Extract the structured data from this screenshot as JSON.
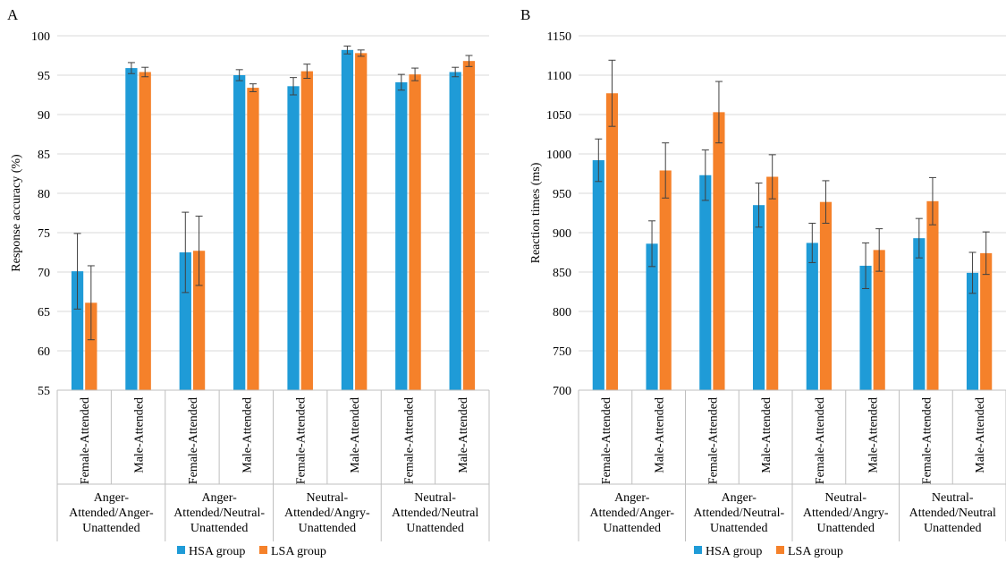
{
  "colors": {
    "hsa": "#1f9bd7",
    "lsa": "#f5812a",
    "grid": "#d9d9d9",
    "axis": "#bfbfbf",
    "error": "#404040"
  },
  "legend_placement": "bottom-center",
  "chart_data": [
    {
      "panel": "A",
      "type": "bar",
      "ylabel": "Response accuracy (%)",
      "ylim": [
        55,
        100
      ],
      "ytick_step": 5,
      "grid": true,
      "groups": [
        "Anger-Attended/Anger-Unattended",
        "Anger-Attended/Neutral-Unattended",
        "Neutral-Attended/Angry-Unattended",
        "Neutral-Attended/Neutral Unattended"
      ],
      "group_lines": [
        [
          "Anger-",
          "Attended/Anger-",
          "Unattended"
        ],
        [
          "Anger-",
          "Attended/Neutral-",
          "Unattended"
        ],
        [
          "Neutral-",
          "Attended/Angry-",
          "Unattended"
        ],
        [
          "Neutral-",
          "Attended/Neutral",
          "Unattended"
        ]
      ],
      "categories": [
        "Female-Attended",
        "Male-Attended",
        "Female-Attended",
        "Male-Attended",
        "Female-Attended",
        "Male-Attended",
        "Female-Attended",
        "Male-Attended"
      ],
      "series": [
        {
          "name": "HSA group",
          "values": [
            70.1,
            95.9,
            72.5,
            95.0,
            93.6,
            98.2,
            94.1,
            95.4
          ],
          "errors": [
            4.8,
            0.7,
            5.1,
            0.7,
            1.1,
            0.5,
            1.0,
            0.6
          ]
        },
        {
          "name": "LSA group",
          "values": [
            66.1,
            95.4,
            72.7,
            93.4,
            95.5,
            97.8,
            95.1,
            96.8
          ],
          "errors": [
            4.7,
            0.6,
            4.4,
            0.5,
            0.9,
            0.4,
            0.8,
            0.7
          ]
        }
      ]
    },
    {
      "panel": "B",
      "type": "bar",
      "ylabel": "Reaction times (ms)",
      "ylim": [
        700,
        1150
      ],
      "ytick_step": 50,
      "grid": true,
      "groups": [
        "Anger-Attended/Anger-Unattended",
        "Anger-Attended/Neutral-Unattended",
        "Neutral-Attended/Angry-Unattended",
        "Neutral-Attended/Neutral Unattended"
      ],
      "group_lines": [
        [
          "Anger-",
          "Attended/Anger-",
          "Unattended"
        ],
        [
          "Anger-",
          "Attended/Neutral-",
          "Unattended"
        ],
        [
          "Neutral-",
          "Attended/Angry-",
          "Unattended"
        ],
        [
          "Neutral-",
          "Attended/Neutral",
          "Unattended"
        ]
      ],
      "categories": [
        "Female-Attended",
        "Male-Attended",
        "Female-Attended",
        "Male-Attended",
        "Female-Attended",
        "Male-Attended",
        "Female-Attended",
        "Male-Attended"
      ],
      "series": [
        {
          "name": "HSA group",
          "values": [
            992,
            886,
            973,
            935,
            887,
            858,
            893,
            849
          ],
          "errors": [
            27,
            29,
            32,
            28,
            25,
            29,
            25,
            26
          ]
        },
        {
          "name": "LSA group",
          "values": [
            1077,
            979,
            1053,
            971,
            939,
            878,
            940,
            874
          ],
          "errors": [
            42,
            35,
            39,
            28,
            27,
            27,
            30,
            27
          ]
        }
      ]
    }
  ]
}
